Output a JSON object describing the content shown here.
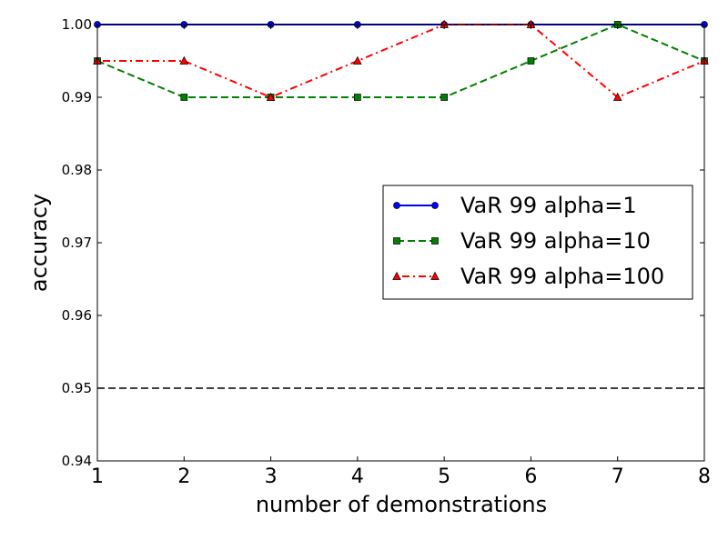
{
  "chart_data": {
    "type": "line",
    "title": "",
    "xlabel": "number of demonstrations",
    "ylabel": "accuracy",
    "xlim": [
      1,
      8
    ],
    "ylim": [
      0.94,
      1.0
    ],
    "x": [
      1,
      2,
      3,
      4,
      5,
      6,
      7,
      8
    ],
    "x_ticks": [
      "1",
      "2",
      "3",
      "4",
      "5",
      "6",
      "7",
      "8"
    ],
    "y_ticks": [
      0.94,
      0.95,
      0.96,
      0.97,
      0.98,
      0.99,
      1.0
    ],
    "y_tick_labels": [
      "0.94",
      "0.95",
      "0.96",
      "0.97",
      "0.98",
      "0.99",
      "1.00"
    ],
    "grid": false,
    "legend_position": "center-right",
    "series": [
      {
        "name": "VaR 99 alpha=1",
        "values": [
          1.0,
          1.0,
          1.0,
          1.0,
          1.0,
          1.0,
          1.0,
          1.0
        ],
        "color": "#0000ff",
        "line_style": "solid",
        "marker": "circle"
      },
      {
        "name": "VaR 99 alpha=10",
        "values": [
          0.995,
          0.99,
          0.99,
          0.99,
          0.99,
          0.995,
          1.0,
          0.995
        ],
        "color": "#008000",
        "line_style": "dashed",
        "marker": "square"
      },
      {
        "name": "VaR 99 alpha=100",
        "values": [
          0.995,
          0.995,
          0.99,
          0.995,
          1.0,
          1.0,
          0.99,
          0.995
        ],
        "color": "#ff0000",
        "line_style": "dash-dot",
        "marker": "triangle"
      }
    ],
    "reference_lines": [
      {
        "y": 0.95,
        "color": "#000000",
        "line_style": "dashed"
      }
    ]
  }
}
